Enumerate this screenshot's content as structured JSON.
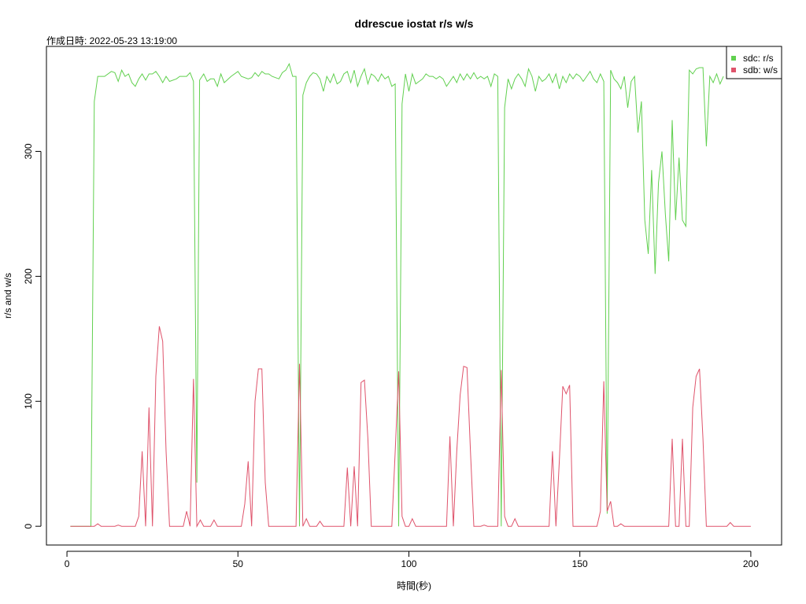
{
  "chart_data": {
    "type": "line",
    "title": "ddrescue iostat r/s w/s",
    "subtitle": "作成日時: 2022-05-23 13:19:00",
    "xlabel": "時間(秒)",
    "ylabel": "r/s and w/s",
    "xlim": [
      -6,
      209
    ],
    "ylim": [
      -15,
      384
    ],
    "x_ticks": [
      0,
      50,
      100,
      150,
      200
    ],
    "y_ticks": [
      0,
      100,
      200,
      300
    ],
    "grid": false,
    "legend_position": "top-right",
    "series": [
      {
        "name": "sdc: r/s",
        "color": "#61D04F",
        "points": [
          [
            1,
            0
          ],
          [
            4,
            0
          ],
          [
            7,
            0
          ],
          [
            8,
            340
          ],
          [
            9,
            360
          ],
          [
            11,
            360
          ],
          [
            13,
            364
          ],
          [
            14,
            363
          ],
          [
            15,
            356
          ],
          [
            16,
            365
          ],
          [
            17,
            360
          ],
          [
            18,
            362
          ],
          [
            19,
            355
          ],
          [
            20,
            352
          ],
          [
            21,
            358
          ],
          [
            22,
            362
          ],
          [
            23,
            357
          ],
          [
            24,
            362
          ],
          [
            25,
            362
          ],
          [
            26,
            364
          ],
          [
            27,
            360
          ],
          [
            28,
            355
          ],
          [
            29,
            360
          ],
          [
            30,
            356
          ],
          [
            32,
            358
          ],
          [
            33,
            360
          ],
          [
            35,
            360
          ],
          [
            36,
            363
          ],
          [
            37,
            356
          ],
          [
            38,
            35
          ],
          [
            38.8,
            357
          ],
          [
            40,
            362
          ],
          [
            41,
            356
          ],
          [
            42,
            358
          ],
          [
            43,
            358
          ],
          [
            44,
            352
          ],
          [
            45,
            362
          ],
          [
            46,
            355
          ],
          [
            48,
            360
          ],
          [
            50,
            364
          ],
          [
            51,
            360
          ],
          [
            53,
            358
          ],
          [
            54,
            359
          ],
          [
            55,
            363
          ],
          [
            56,
            360
          ],
          [
            57,
            364
          ],
          [
            58,
            362
          ],
          [
            59,
            362
          ],
          [
            60,
            360
          ],
          [
            62,
            358
          ],
          [
            63,
            363
          ],
          [
            64,
            365
          ],
          [
            65,
            370
          ],
          [
            66,
            360
          ],
          [
            67,
            360
          ],
          [
            68,
            0
          ],
          [
            69,
            345
          ],
          [
            70,
            355
          ],
          [
            71,
            360
          ],
          [
            72,
            363
          ],
          [
            73,
            362
          ],
          [
            74,
            358
          ],
          [
            75,
            348
          ],
          [
            76,
            360
          ],
          [
            77,
            355
          ],
          [
            78,
            362
          ],
          [
            79,
            354
          ],
          [
            80,
            356
          ],
          [
            81,
            362
          ],
          [
            82,
            364
          ],
          [
            83,
            355
          ],
          [
            84,
            365
          ],
          [
            85,
            352
          ],
          [
            86,
            360
          ],
          [
            87,
            366
          ],
          [
            88,
            354
          ],
          [
            89,
            362
          ],
          [
            90,
            360
          ],
          [
            91,
            356
          ],
          [
            92,
            362
          ],
          [
            93,
            358
          ],
          [
            94,
            360
          ],
          [
            95,
            352
          ],
          [
            96,
            354
          ],
          [
            97,
            0
          ],
          [
            98,
            338
          ],
          [
            99,
            362
          ],
          [
            100,
            348
          ],
          [
            101,
            362
          ],
          [
            102,
            354
          ],
          [
            103,
            356
          ],
          [
            104,
            358
          ],
          [
            105,
            362
          ],
          [
            106,
            360
          ],
          [
            107,
            360
          ],
          [
            108,
            358
          ],
          [
            109,
            360
          ],
          [
            110,
            358
          ],
          [
            111,
            352
          ],
          [
            112,
            356
          ],
          [
            113,
            360
          ],
          [
            114,
            355
          ],
          [
            115,
            362
          ],
          [
            116,
            357
          ],
          [
            117,
            362
          ],
          [
            118,
            358
          ],
          [
            119,
            363
          ],
          [
            120,
            358
          ],
          [
            121,
            360
          ],
          [
            122,
            358
          ],
          [
            123,
            360
          ],
          [
            124,
            352
          ],
          [
            125,
            362
          ],
          [
            126,
            360
          ],
          [
            127,
            0
          ],
          [
            128,
            335
          ],
          [
            129,
            358
          ],
          [
            130,
            350
          ],
          [
            131,
            358
          ],
          [
            132,
            362
          ],
          [
            133,
            358
          ],
          [
            134,
            352
          ],
          [
            135,
            366
          ],
          [
            136,
            360
          ],
          [
            137,
            348
          ],
          [
            138,
            360
          ],
          [
            139,
            356
          ],
          [
            140,
            358
          ],
          [
            141,
            362
          ],
          [
            142,
            355
          ],
          [
            143,
            362
          ],
          [
            144,
            350
          ],
          [
            145,
            360
          ],
          [
            146,
            355
          ],
          [
            147,
            362
          ],
          [
            148,
            358
          ],
          [
            149,
            362
          ],
          [
            150,
            360
          ],
          [
            151,
            356
          ],
          [
            152,
            360
          ],
          [
            153,
            364
          ],
          [
            154,
            358
          ],
          [
            155,
            355
          ],
          [
            156,
            362
          ],
          [
            157,
            356
          ],
          [
            158,
            10
          ],
          [
            159,
            365
          ],
          [
            160,
            358
          ],
          [
            161,
            355
          ],
          [
            162,
            350
          ],
          [
            163,
            360
          ],
          [
            164,
            335
          ],
          [
            165,
            356
          ],
          [
            166,
            360
          ],
          [
            167,
            315
          ],
          [
            168,
            340
          ],
          [
            169,
            245
          ],
          [
            170,
            218
          ],
          [
            171,
            285
          ],
          [
            172,
            202
          ],
          [
            173,
            275
          ],
          [
            174,
            300
          ],
          [
            175,
            250
          ],
          [
            176,
            212
          ],
          [
            177,
            325
          ],
          [
            178,
            245
          ],
          [
            179,
            295
          ],
          [
            180,
            245
          ],
          [
            181,
            240
          ],
          [
            182,
            365
          ],
          [
            183,
            362
          ],
          [
            184,
            366
          ],
          [
            185,
            367
          ],
          [
            186,
            367
          ],
          [
            187,
            304
          ],
          [
            188,
            360
          ],
          [
            189,
            355
          ],
          [
            190,
            362
          ],
          [
            191,
            354
          ],
          [
            192,
            360
          ]
        ]
      },
      {
        "name": "sdb: w/s",
        "color": "#DF536B",
        "points": [
          [
            1,
            0
          ],
          [
            7,
            0
          ],
          [
            8,
            0
          ],
          [
            9,
            2
          ],
          [
            10,
            0
          ],
          [
            14,
            0
          ],
          [
            15,
            1
          ],
          [
            16,
            0
          ],
          [
            19,
            0
          ],
          [
            20,
            0
          ],
          [
            21,
            8
          ],
          [
            22,
            60
          ],
          [
            23,
            0
          ],
          [
            24,
            95
          ],
          [
            25,
            0
          ],
          [
            26,
            120
          ],
          [
            27,
            160
          ],
          [
            28,
            148
          ],
          [
            29,
            60
          ],
          [
            30,
            0
          ],
          [
            31,
            0
          ],
          [
            34,
            0
          ],
          [
            35,
            12
          ],
          [
            36,
            0
          ],
          [
            37,
            118
          ],
          [
            38,
            0
          ],
          [
            39,
            5
          ],
          [
            40,
            0
          ],
          [
            42,
            0
          ],
          [
            43,
            5
          ],
          [
            44,
            0
          ],
          [
            48,
            0
          ],
          [
            49,
            0
          ],
          [
            50,
            0
          ],
          [
            51,
            0
          ],
          [
            52,
            18
          ],
          [
            53,
            52
          ],
          [
            54,
            0
          ],
          [
            55,
            100
          ],
          [
            56,
            126
          ],
          [
            57,
            126
          ],
          [
            58,
            35
          ],
          [
            59,
            0
          ],
          [
            62,
            0
          ],
          [
            66,
            0
          ],
          [
            67,
            0
          ],
          [
            68,
            130
          ],
          [
            69,
            0
          ],
          [
            70,
            6
          ],
          [
            71,
            0
          ],
          [
            73,
            0
          ],
          [
            74,
            4
          ],
          [
            75,
            0
          ],
          [
            79,
            0
          ],
          [
            80,
            0
          ],
          [
            81,
            0
          ],
          [
            82,
            47
          ],
          [
            83,
            0
          ],
          [
            84,
            48
          ],
          [
            85,
            0
          ],
          [
            86,
            115
          ],
          [
            87,
            117
          ],
          [
            88,
            70
          ],
          [
            89,
            0
          ],
          [
            92,
            0
          ],
          [
            95,
            0
          ],
          [
            96,
            60
          ],
          [
            97,
            124
          ],
          [
            98,
            8
          ],
          [
            99,
            0
          ],
          [
            100,
            0
          ],
          [
            101,
            6
          ],
          [
            102,
            0
          ],
          [
            108,
            0
          ],
          [
            110,
            0
          ],
          [
            111,
            0
          ],
          [
            112,
            72
          ],
          [
            113,
            0
          ],
          [
            114,
            60
          ],
          [
            115,
            105
          ],
          [
            116,
            128
          ],
          [
            117,
            127
          ],
          [
            118,
            60
          ],
          [
            119,
            0
          ],
          [
            121,
            0
          ],
          [
            122,
            1
          ],
          [
            123,
            0
          ],
          [
            125,
            0
          ],
          [
            126,
            0
          ],
          [
            127,
            125
          ],
          [
            128,
            8
          ],
          [
            129,
            0
          ],
          [
            130,
            0
          ],
          [
            131,
            6
          ],
          [
            132,
            0
          ],
          [
            138,
            0
          ],
          [
            141,
            0
          ],
          [
            142,
            60
          ],
          [
            143,
            0
          ],
          [
            144,
            52
          ],
          [
            145,
            112
          ],
          [
            146,
            106
          ],
          [
            147,
            113
          ],
          [
            148,
            0
          ],
          [
            150,
            0
          ],
          [
            155,
            0
          ],
          [
            156,
            12
          ],
          [
            157,
            116
          ],
          [
            158,
            12
          ],
          [
            159,
            20
          ],
          [
            160,
            0
          ],
          [
            161,
            0
          ],
          [
            162,
            2
          ],
          [
            163,
            0
          ],
          [
            170,
            0
          ],
          [
            176,
            0
          ],
          [
            177,
            70
          ],
          [
            178,
            0
          ],
          [
            179,
            0
          ],
          [
            180,
            70
          ],
          [
            181,
            0
          ],
          [
            182,
            0
          ],
          [
            183,
            95
          ],
          [
            184,
            120
          ],
          [
            185,
            126
          ],
          [
            186,
            70
          ],
          [
            187,
            0
          ],
          [
            190,
            0
          ],
          [
            193,
            0
          ],
          [
            194,
            3
          ],
          [
            195,
            0
          ],
          [
            200,
            0
          ]
        ]
      }
    ],
    "legend": [
      {
        "label": "sdc: r/s",
        "color": "#61D04F"
      },
      {
        "label": "sdb: w/s",
        "color": "#DF536B"
      }
    ]
  }
}
